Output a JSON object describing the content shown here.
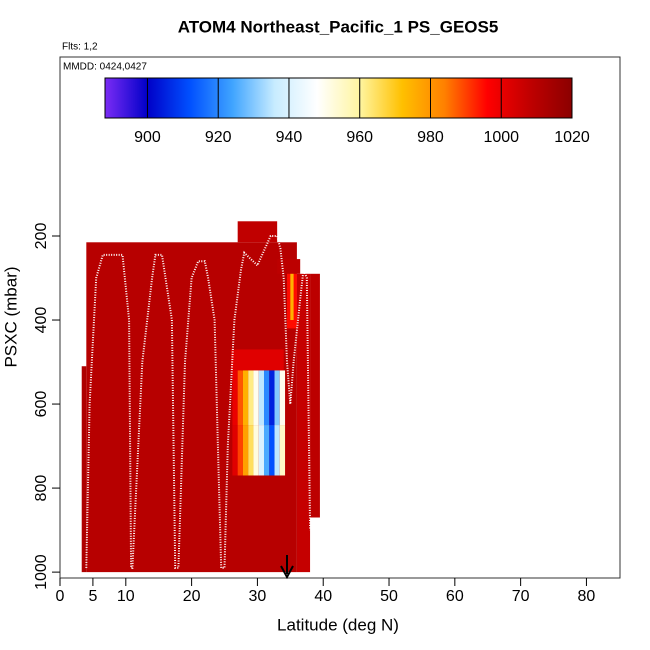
{
  "chart_data": {
    "type": "curtain",
    "title": "ATOM4 Northeast_Pacific_1 PS_GEOS5",
    "flights_label": "Flts: 1,2",
    "dates_label": "MMDD: 0424,0427",
    "xlabel": "Latitude (deg N)",
    "ylabel": "PSXC (mbar)",
    "xlim": [
      0,
      85.1
    ],
    "xticks": [
      0,
      5,
      10,
      20,
      30,
      40,
      50,
      60,
      70,
      80
    ],
    "ylim": [
      1014,
      -226
    ],
    "yticks": [
      200,
      400,
      600,
      800,
      1000
    ],
    "colorbar": {
      "clim": [
        888,
        1020
      ],
      "ticks": [
        900,
        920,
        940,
        960,
        980,
        1000,
        1020
      ],
      "colors": [
        "#7b2cf5",
        "#0000c8",
        "#0050ff",
        "#3fa4ff",
        "#c8ecff",
        "#ffffff",
        "#fff5a0",
        "#ffc000",
        "#ff8000",
        "#ff0000",
        "#c00000",
        "#8b0000"
      ]
    },
    "cells": [
      {
        "lat": [
          3.3,
          4.0
        ],
        "p": [
          510,
          1000
        ],
        "value": 1012
      },
      {
        "lat": [
          4.0,
          36.0
        ],
        "p": [
          215,
          1000
        ],
        "value": 1010
      },
      {
        "lat": [
          27.0,
          33.0
        ],
        "p": [
          165,
          215
        ],
        "value": 1008
      },
      {
        "lat": [
          33.0,
          36.5
        ],
        "p": [
          255,
          290
        ],
        "value": 1009
      },
      {
        "lat": [
          36.0,
          38.0
        ],
        "p": [
          290,
          1000
        ],
        "value": 1007
      },
      {
        "lat": [
          38.0,
          39.5
        ],
        "p": [
          290,
          870
        ],
        "value": 1009
      },
      {
        "lat": [
          34.5,
          36.0
        ],
        "p": [
          290,
          420
        ],
        "value": 995
      },
      {
        "lat": [
          35.0,
          35.5
        ],
        "p": [
          290,
          400
        ],
        "value": 975
      },
      {
        "lat": [
          26.0,
          34.0
        ],
        "p": [
          470,
          520
        ],
        "value": 1002
      },
      {
        "lat": [
          26.2,
          27.0
        ],
        "p": [
          520,
          650
        ],
        "value": 1000
      },
      {
        "lat": [
          27.0,
          27.8
        ],
        "p": [
          520,
          650
        ],
        "value": 988
      },
      {
        "lat": [
          27.8,
          28.6
        ],
        "p": [
          520,
          650
        ],
        "value": 975
      },
      {
        "lat": [
          28.6,
          29.4
        ],
        "p": [
          520,
          650
        ],
        "value": 962
      },
      {
        "lat": [
          29.4,
          30.2
        ],
        "p": [
          520,
          650
        ],
        "value": 950
      },
      {
        "lat": [
          30.2,
          31.0
        ],
        "p": [
          520,
          650
        ],
        "value": 935
      },
      {
        "lat": [
          31.0,
          31.8
        ],
        "p": [
          520,
          650
        ],
        "value": 920
      },
      {
        "lat": [
          31.8,
          32.6
        ],
        "p": [
          520,
          650
        ],
        "value": 905
      },
      {
        "lat": [
          32.6,
          33.4
        ],
        "p": [
          520,
          650
        ],
        "value": 930
      },
      {
        "lat": [
          33.4,
          34.2
        ],
        "p": [
          520,
          650
        ],
        "value": 950
      },
      {
        "lat": [
          26.2,
          27.0
        ],
        "p": [
          650,
          770
        ],
        "value": 1002
      },
      {
        "lat": [
          27.0,
          27.8
        ],
        "p": [
          650,
          770
        ],
        "value": 990
      },
      {
        "lat": [
          27.8,
          28.6
        ],
        "p": [
          650,
          770
        ],
        "value": 978
      },
      {
        "lat": [
          28.6,
          29.4
        ],
        "p": [
          650,
          770
        ],
        "value": 965
      },
      {
        "lat": [
          29.4,
          30.2
        ],
        "p": [
          650,
          770
        ],
        "value": 952
      },
      {
        "lat": [
          30.2,
          31.0
        ],
        "p": [
          650,
          770
        ],
        "value": 940
      },
      {
        "lat": [
          31.0,
          31.8
        ],
        "p": [
          650,
          770
        ],
        "value": 925
      },
      {
        "lat": [
          31.8,
          32.6
        ],
        "p": [
          650,
          770
        ],
        "value": 912
      },
      {
        "lat": [
          32.6,
          33.4
        ],
        "p": [
          650,
          770
        ],
        "value": 935
      },
      {
        "lat": [
          33.4,
          34.2
        ],
        "p": [
          650,
          770
        ],
        "value": 955
      }
    ],
    "track": {
      "color": "#ffffff",
      "lat": [
        4.0,
        4.5,
        5.5,
        6.5,
        9.5,
        10.5,
        10.8,
        11.0,
        12.5,
        14.0,
        14.5,
        15.5,
        17.0,
        17.5,
        18.0,
        19.0,
        20.0,
        21.0,
        22.0,
        22.5,
        23.5,
        24.0,
        24.5,
        25.0,
        25.5,
        26.5,
        27.5,
        28.0,
        30.0,
        32.0,
        33.0,
        33.5,
        34.0,
        34.5,
        35.0,
        35.5,
        36.5,
        37.0,
        37.5,
        38.0
      ],
      "p": [
        990,
        600,
        300,
        245,
        245,
        400,
        990,
        990,
        500,
        300,
        245,
        245,
        400,
        990,
        990,
        500,
        300,
        260,
        260,
        300,
        400,
        700,
        990,
        990,
        700,
        400,
        280,
        240,
        270,
        200,
        200,
        230,
        300,
        500,
        600,
        500,
        350,
        280,
        300,
        900
      ]
    }
  }
}
